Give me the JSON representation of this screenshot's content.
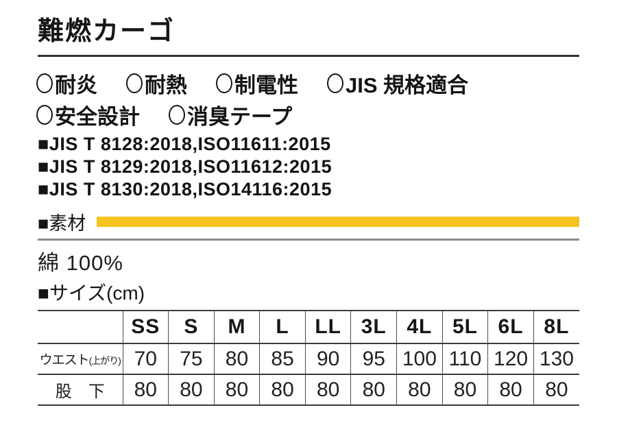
{
  "page": {
    "title": "難燃カーゴ"
  },
  "features": {
    "row1": [
      {
        "label": "耐炎"
      },
      {
        "label": "耐熱"
      },
      {
        "label": "制電性"
      },
      {
        "label": "JIS 規格適合"
      }
    ],
    "row2": [
      {
        "label": "安全設計"
      },
      {
        "label": "消臭テープ"
      }
    ]
  },
  "standards": [
    "■JIS T 8128:2018,ISO11611:2015",
    "■JIS T 8129:2018,ISO11612:2015",
    "■JIS T 8130:2018,ISO14116:2015"
  ],
  "material": {
    "heading": "■素材",
    "value": "綿 100%",
    "bar_color": "#F5C420"
  },
  "size": {
    "heading": "■サイズ(cm)",
    "table": {
      "columns": [
        "SS",
        "S",
        "M",
        "L",
        "LL",
        "3L",
        "4L",
        "5L",
        "6L",
        "8L"
      ],
      "rows": [
        {
          "label": "ウエスト",
          "label_suffix": "(上がり)",
          "wide": false,
          "values": [
            "70",
            "75",
            "80",
            "85",
            "90",
            "95",
            "100",
            "110",
            "120",
            "130"
          ]
        },
        {
          "label": "股　下",
          "label_suffix": "",
          "wide": true,
          "values": [
            "80",
            "80",
            "80",
            "80",
            "80",
            "80",
            "80",
            "80",
            "80",
            "80"
          ]
        }
      ]
    }
  },
  "icons": {
    "feature_bullet": "circle-outline",
    "heading_bullet": "black-square"
  },
  "colors": {
    "accent_yellow": "#F5C420",
    "rule_dark": "#333333",
    "rule_gray": "#8C8C8C",
    "text": "#1C1C1C"
  }
}
